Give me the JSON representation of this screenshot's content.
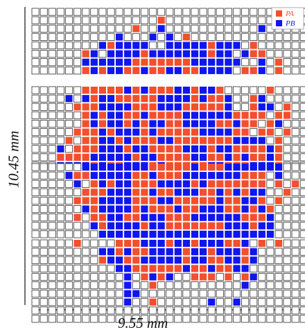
{
  "axis": {
    "height_label": "10.45 mm",
    "width_label": "9.55 mm"
  },
  "legend": [
    {
      "name": "PA",
      "color": "#f34f2e"
    },
    {
      "name": "PB",
      "color": "#1016ee"
    }
  ],
  "colors": {
    "empty_border": "#444444",
    "empty_fill": "#ffffff",
    "pa": "#f34f2e",
    "pb": "#1016ee"
  },
  "grid": {
    "columns": 33,
    "bands": [
      [
        "................................",
        "...............A................",
        "............A..B...........B....",
        "..........B...B.B.A.............",
        "........BABBBB..BBBBBABBB.A.....",
        "......AB.BBBBABBBBBBBABB.BAA....",
        "......BBBBBBAAAAAAABBBBBB..B.A..",
        "......ABABBAABAABBAABBBB.AAB.A.."
      ],
      [
        "......AAAAABABAAABBABBA.....A...",
        "....B.BABBAAAAABBBBABAAB..AB...",
        ".....AAABBBBAAABBBAAAAAB..ABB.A.",
        "......ABABBAABAAAABBBBBBAAAA.AA.",
        "......ABABBABABBAABBBBAABAA.AB..",
        ".....AAABABBBABAAAAABBBBAA.AA.A.",
        "....A.AABBABAAABBAAAAAAABBBB.A..",
        "...B.AAABBBABBAAAABBBABBAAAABA..",
        "...AAAABBBBBABBAAAABBAABABAABA..",
        "...BBBBABAABBBABAAAAABBAAABBBA.."
      ],
      [
        "......BBBBBBBBAAAAABAAABBBBBBB..",
        "....BAABBBBBAABAAABBBBBBBAAA.B..",
        ".....B.ABABBAAABBBBABAAAAAAA.A.A",
        "......AAABBBAABAABBBAABABABB..A.",
        ".....AAABBBBAAABBAAAAABAABBA.A..",
        "......BABBBBABAAABAABBBAABABA...",
        ".....A.AABBAABBBAAABBBBBBAAAB...",
        ".......BABBBBABBAAAAAAABBBABB...",
        "........BBBBBBBBBBBBBBBBBBBBB..."
      ],
      [
        ".....A....AAABBBABBABBBAAB.A.A..",
        "........BBABAABBBBABBABBBAB.....",
        "........ABBAABBBBBABBAABBAB.....",
        "..........BBAAAAAABAABAABB......",
        "...........B.ABAB..AAA.A.AB.....",
        "...........B..A..........B......",
        "...........BB..................",
        "...........B..A......B..B......",
        "................................",
        "................................"
      ]
    ]
  }
}
